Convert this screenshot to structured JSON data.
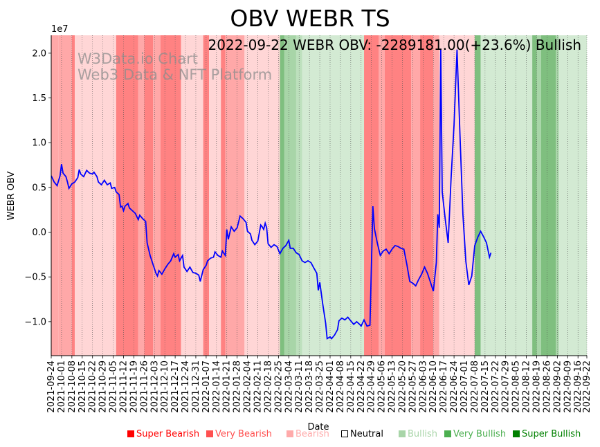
{
  "chart_data": {
    "type": "line",
    "title": "OBV WEBR TS",
    "xlabel": "Date",
    "ylabel": "WEBR OBV",
    "y_scale_note": "1e7",
    "ylim": [
      -13.8,
      22.0
    ],
    "xlim": [
      "2021-09-24",
      "2022-09-22"
    ],
    "yticks": [
      -1.0,
      -0.5,
      0.0,
      0.5,
      1.0,
      1.5,
      2.0
    ],
    "ytick_labels": [
      "−1.0",
      "−0.5",
      "0.0",
      "0.5",
      "1.0",
      "1.5",
      "2.0"
    ],
    "xtick_labels": [
      "2021-09-24",
      "2021-10-01",
      "2021-10-08",
      "2021-10-15",
      "2021-10-22",
      "2021-10-29",
      "2021-11-05",
      "2021-11-12",
      "2021-11-19",
      "2021-11-26",
      "2021-12-03",
      "2021-12-10",
      "2021-12-17",
      "2021-12-24",
      "2021-12-31",
      "2022-01-07",
      "2022-01-14",
      "2022-01-21",
      "2022-01-28",
      "2022-02-04",
      "2022-02-11",
      "2022-02-18",
      "2022-02-25",
      "2022-03-04",
      "2022-03-11",
      "2022-03-18",
      "2022-03-25",
      "2022-04-01",
      "2022-04-08",
      "2022-04-15",
      "2022-04-22",
      "2022-04-29",
      "2022-05-06",
      "2022-05-13",
      "2022-05-20",
      "2022-05-27",
      "2022-06-03",
      "2022-06-10",
      "2022-06-17",
      "2022-06-24",
      "2022-07-01",
      "2022-07-08",
      "2022-07-15",
      "2022-07-22",
      "2022-07-29",
      "2022-08-05",
      "2022-08-12",
      "2022-08-19",
      "2022-08-26",
      "2022-09-02",
      "2022-09-09",
      "2022-09-16",
      "2022-09-22"
    ],
    "annotation": "2022-09-22 WEBR OBV: -2289181.00(+23.6%) Bullish",
    "watermark_lines": [
      "W3Data.io Chart",
      "Web3 Data & NFT Platform"
    ],
    "line_color": "#0000ff",
    "series": [
      {
        "values_units": "1e6",
        "points": [
          [
            "2021-09-24",
            6.3
          ],
          [
            "2021-09-26",
            5.6
          ],
          [
            "2021-09-28",
            5.2
          ],
          [
            "2021-09-30",
            6.3
          ],
          [
            "2021-10-01",
            7.6
          ],
          [
            "2021-10-02",
            6.6
          ],
          [
            "2021-10-04",
            6.2
          ],
          [
            "2021-10-05",
            5.6
          ],
          [
            "2021-10-06",
            4.9
          ],
          [
            "2021-10-08",
            5.4
          ],
          [
            "2021-10-10",
            5.6
          ],
          [
            "2021-10-12",
            6.1
          ],
          [
            "2021-10-13",
            7.0
          ],
          [
            "2021-10-14",
            6.5
          ],
          [
            "2021-10-16",
            6.2
          ],
          [
            "2021-10-18",
            6.9
          ],
          [
            "2021-10-20",
            6.6
          ],
          [
            "2021-10-22",
            6.5
          ],
          [
            "2021-10-23",
            6.7
          ],
          [
            "2021-10-25",
            6.2
          ],
          [
            "2021-10-26",
            5.6
          ],
          [
            "2021-10-28",
            5.3
          ],
          [
            "2021-10-30",
            5.8
          ],
          [
            "2021-11-01",
            5.3
          ],
          [
            "2021-11-03",
            5.5
          ],
          [
            "2021-11-04",
            4.9
          ],
          [
            "2021-11-06",
            5.0
          ],
          [
            "2021-11-07",
            4.5
          ],
          [
            "2021-11-09",
            4.2
          ],
          [
            "2021-11-10",
            2.8
          ],
          [
            "2021-11-11",
            2.9
          ],
          [
            "2021-11-12",
            2.4
          ],
          [
            "2021-11-13",
            2.9
          ],
          [
            "2021-11-15",
            3.2
          ],
          [
            "2021-11-16",
            2.7
          ],
          [
            "2021-11-18",
            2.4
          ],
          [
            "2021-11-20",
            2.1
          ],
          [
            "2021-11-22",
            1.4
          ],
          [
            "2021-11-23",
            1.9
          ],
          [
            "2021-11-25",
            1.5
          ],
          [
            "2021-11-27",
            1.2
          ],
          [
            "2021-11-28",
            -1.2
          ],
          [
            "2021-11-30",
            -2.6
          ],
          [
            "2021-12-02",
            -3.6
          ],
          [
            "2021-12-04",
            -4.6
          ],
          [
            "2021-12-05",
            -4.9
          ],
          [
            "2021-12-06",
            -4.3
          ],
          [
            "2021-12-08",
            -4.7
          ],
          [
            "2021-12-10",
            -4.1
          ],
          [
            "2021-12-12",
            -3.6
          ],
          [
            "2021-12-14",
            -3.2
          ],
          [
            "2021-12-16",
            -2.4
          ],
          [
            "2021-12-17",
            -2.8
          ],
          [
            "2021-12-19",
            -2.5
          ],
          [
            "2021-12-20",
            -3.2
          ],
          [
            "2021-12-22",
            -2.6
          ],
          [
            "2021-12-23",
            -3.9
          ],
          [
            "2021-12-25",
            -4.4
          ],
          [
            "2021-12-27",
            -3.9
          ],
          [
            "2021-12-29",
            -4.5
          ],
          [
            "2021-12-31",
            -4.6
          ],
          [
            "2022-01-02",
            -4.8
          ],
          [
            "2022-01-03",
            -5.5
          ],
          [
            "2022-01-05",
            -4.2
          ],
          [
            "2022-01-07",
            -3.7
          ],
          [
            "2022-01-08",
            -3.2
          ],
          [
            "2022-01-10",
            -2.9
          ],
          [
            "2022-01-12",
            -2.8
          ],
          [
            "2022-01-13",
            -2.2
          ],
          [
            "2022-01-15",
            -2.6
          ],
          [
            "2022-01-17",
            -2.8
          ],
          [
            "2022-01-18",
            -2.1
          ],
          [
            "2022-01-20",
            -2.6
          ],
          [
            "2022-01-21",
            0.3
          ],
          [
            "2022-01-22",
            -0.8
          ],
          [
            "2022-01-24",
            0.6
          ],
          [
            "2022-01-26",
            0.1
          ],
          [
            "2022-01-28",
            0.5
          ],
          [
            "2022-01-30",
            1.8
          ],
          [
            "2022-02-01",
            1.5
          ],
          [
            "2022-02-03",
            1.1
          ],
          [
            "2022-02-04",
            0.1
          ],
          [
            "2022-02-06",
            -0.2
          ],
          [
            "2022-02-07",
            -0.9
          ],
          [
            "2022-02-09",
            -1.4
          ],
          [
            "2022-02-11",
            -1.0
          ],
          [
            "2022-02-13",
            0.8
          ],
          [
            "2022-02-14",
            0.6
          ],
          [
            "2022-02-15",
            0.3
          ],
          [
            "2022-02-16",
            1.0
          ],
          [
            "2022-02-17",
            0.5
          ],
          [
            "2022-02-18",
            -1.3
          ],
          [
            "2022-02-20",
            -1.7
          ],
          [
            "2022-02-22",
            -1.4
          ],
          [
            "2022-02-24",
            -1.6
          ],
          [
            "2022-02-26",
            -2.4
          ],
          [
            "2022-02-28",
            -1.8
          ],
          [
            "2022-03-02",
            -1.5
          ],
          [
            "2022-03-04",
            -0.9
          ],
          [
            "2022-03-05",
            -1.8
          ],
          [
            "2022-03-07",
            -1.8
          ],
          [
            "2022-03-09",
            -2.3
          ],
          [
            "2022-03-11",
            -2.5
          ],
          [
            "2022-03-13",
            -3.2
          ],
          [
            "2022-03-15",
            -3.4
          ],
          [
            "2022-03-17",
            -3.2
          ],
          [
            "2022-03-19",
            -3.4
          ],
          [
            "2022-03-21",
            -4.0
          ],
          [
            "2022-03-23",
            -4.6
          ],
          [
            "2022-03-24",
            -6.5
          ],
          [
            "2022-03-25",
            -5.6
          ],
          [
            "2022-03-27",
            -8.0
          ],
          [
            "2022-03-29",
            -10.2
          ],
          [
            "2022-03-30",
            -11.9
          ],
          [
            "2022-04-01",
            -11.7
          ],
          [
            "2022-04-02",
            -11.9
          ],
          [
            "2022-04-04",
            -11.5
          ],
          [
            "2022-04-06",
            -10.9
          ],
          [
            "2022-04-07",
            -9.9
          ],
          [
            "2022-04-09",
            -9.6
          ],
          [
            "2022-04-11",
            -9.8
          ],
          [
            "2022-04-13",
            -9.5
          ],
          [
            "2022-04-15",
            -9.9
          ],
          [
            "2022-04-17",
            -10.3
          ],
          [
            "2022-04-19",
            -10.0
          ],
          [
            "2022-04-21",
            -10.3
          ],
          [
            "2022-04-22",
            -10.5
          ],
          [
            "2022-04-24",
            -9.8
          ],
          [
            "2022-04-26",
            -10.5
          ],
          [
            "2022-04-28",
            -10.4
          ],
          [
            "2022-04-30",
            2.9
          ],
          [
            "2022-05-01",
            0.4
          ],
          [
            "2022-05-03",
            -1.2
          ],
          [
            "2022-05-05",
            -2.6
          ],
          [
            "2022-05-07",
            -2.1
          ],
          [
            "2022-05-09",
            -1.9
          ],
          [
            "2022-05-11",
            -2.4
          ],
          [
            "2022-05-13",
            -1.9
          ],
          [
            "2022-05-15",
            -1.5
          ],
          [
            "2022-05-17",
            -1.6
          ],
          [
            "2022-05-19",
            -1.8
          ],
          [
            "2022-05-21",
            -1.9
          ],
          [
            "2022-05-23",
            -3.6
          ],
          [
            "2022-05-25",
            -5.5
          ],
          [
            "2022-05-27",
            -5.7
          ],
          [
            "2022-05-29",
            -6.0
          ],
          [
            "2022-05-31",
            -5.3
          ],
          [
            "2022-06-02",
            -4.7
          ],
          [
            "2022-06-04",
            -3.9
          ],
          [
            "2022-06-06",
            -4.6
          ],
          [
            "2022-06-08",
            -5.6
          ],
          [
            "2022-06-10",
            -6.6
          ],
          [
            "2022-06-12",
            -3.4
          ],
          [
            "2022-06-13",
            2.0
          ],
          [
            "2022-06-14",
            0.5
          ],
          [
            "2022-06-15",
            20.5
          ],
          [
            "2022-06-16",
            4.5
          ],
          [
            "2022-06-18",
            1.5
          ],
          [
            "2022-06-20",
            -1.2
          ],
          [
            "2022-06-22",
            6.0
          ],
          [
            "2022-06-24",
            12.0
          ],
          [
            "2022-06-26",
            20.4
          ],
          [
            "2022-06-28",
            11.0
          ],
          [
            "2022-06-30",
            2.0
          ],
          [
            "2022-07-02",
            -3.3
          ],
          [
            "2022-07-04",
            -5.9
          ],
          [
            "2022-07-06",
            -4.9
          ],
          [
            "2022-07-08",
            -1.5
          ],
          [
            "2022-07-10",
            -0.6
          ],
          [
            "2022-07-12",
            0.1
          ],
          [
            "2022-07-14",
            -0.5
          ],
          [
            "2022-07-16",
            -1.2
          ],
          [
            "2022-07-18",
            -2.8
          ],
          [
            "2022-07-19",
            -2.3
          ]
        ]
      }
    ],
    "bands": [
      {
        "from": "2021-09-24",
        "to": "2021-09-29",
        "sentiment": "bearish"
      },
      {
        "from": "2021-09-29",
        "to": "2021-10-08",
        "sentiment": "bearish"
      },
      {
        "from": "2021-10-08",
        "to": "2021-10-10",
        "sentiment": "very-bearish"
      },
      {
        "from": "2021-10-10",
        "to": "2021-11-07",
        "sentiment": "light-bearish"
      },
      {
        "from": "2021-11-07",
        "to": "2021-11-22",
        "sentiment": "very-bearish"
      },
      {
        "from": "2021-11-22",
        "to": "2021-11-26",
        "sentiment": "bearish"
      },
      {
        "from": "2021-11-26",
        "to": "2021-12-02",
        "sentiment": "very-bearish"
      },
      {
        "from": "2021-12-02",
        "to": "2021-12-07",
        "sentiment": "bearish"
      },
      {
        "from": "2021-12-07",
        "to": "2021-12-21",
        "sentiment": "very-bearish"
      },
      {
        "from": "2021-12-21",
        "to": "2022-01-05",
        "sentiment": "light-bearish"
      },
      {
        "from": "2022-01-05",
        "to": "2022-01-09",
        "sentiment": "very-bearish"
      },
      {
        "from": "2022-01-09",
        "to": "2022-01-17",
        "sentiment": "light-bearish"
      },
      {
        "from": "2022-01-17",
        "to": "2022-01-20",
        "sentiment": "very-bearish"
      },
      {
        "from": "2022-01-20",
        "to": "2022-02-02",
        "sentiment": "bearish"
      },
      {
        "from": "2022-02-02",
        "to": "2022-02-26",
        "sentiment": "light-bearish"
      },
      {
        "from": "2022-02-26",
        "to": "2022-03-01",
        "sentiment": "very-bullish"
      },
      {
        "from": "2022-03-01",
        "to": "2022-03-09",
        "sentiment": "bullish"
      },
      {
        "from": "2022-03-09",
        "to": "2022-03-13",
        "sentiment": "bullish-mid"
      },
      {
        "from": "2022-03-13",
        "to": "2022-04-24",
        "sentiment": "light-bullish"
      },
      {
        "from": "2022-04-24",
        "to": "2022-05-04",
        "sentiment": "very-bearish"
      },
      {
        "from": "2022-05-04",
        "to": "2022-05-08",
        "sentiment": "bearish"
      },
      {
        "from": "2022-05-08",
        "to": "2022-05-26",
        "sentiment": "very-bearish"
      },
      {
        "from": "2022-05-26",
        "to": "2022-06-01",
        "sentiment": "bearish"
      },
      {
        "from": "2022-06-01",
        "to": "2022-06-10",
        "sentiment": "very-bearish"
      },
      {
        "from": "2022-06-10",
        "to": "2022-06-14",
        "sentiment": "bearish"
      },
      {
        "from": "2022-06-14",
        "to": "2022-07-08",
        "sentiment": "light-bearish"
      },
      {
        "from": "2022-07-08",
        "to": "2022-07-12",
        "sentiment": "very-bullish"
      },
      {
        "from": "2022-07-12",
        "to": "2022-08-16",
        "sentiment": "light-bullish"
      },
      {
        "from": "2022-08-16",
        "to": "2022-08-19",
        "sentiment": "very-bullish"
      },
      {
        "from": "2022-08-19",
        "to": "2022-08-22",
        "sentiment": "bullish"
      },
      {
        "from": "2022-08-22",
        "to": "2022-09-01",
        "sentiment": "very-bullish"
      },
      {
        "from": "2022-09-01",
        "to": "2022-09-03",
        "sentiment": "bullish"
      },
      {
        "from": "2022-09-03",
        "to": "2022-09-22",
        "sentiment": "light-bullish"
      }
    ],
    "band_colors": {
      "very-bearish": "#ff8282",
      "bearish": "#ffa8a8",
      "light-bearish": "#ffd6d6",
      "very-bullish": "#7fbf7f",
      "bullish": "#a8d5a8",
      "bullish-mid": "#bde0bd",
      "light-bullish": "#d3ead3"
    },
    "legend": [
      {
        "label": "Super Bearish",
        "color": "#ff0000",
        "marker": "■"
      },
      {
        "label": "Very Bearish",
        "color": "#ff5050",
        "marker": "■"
      },
      {
        "label": "Bearish",
        "color": "#ffaaaa",
        "marker": "■"
      },
      {
        "label": "Neutral",
        "color": "#000000",
        "marker": "□"
      },
      {
        "label": "Bullish",
        "color": "#a8d5a8",
        "marker": "■"
      },
      {
        "label": "Very Bullish",
        "color": "#4caf50",
        "marker": "■"
      },
      {
        "label": "Super Bullish",
        "color": "#008000",
        "marker": "■"
      }
    ]
  }
}
